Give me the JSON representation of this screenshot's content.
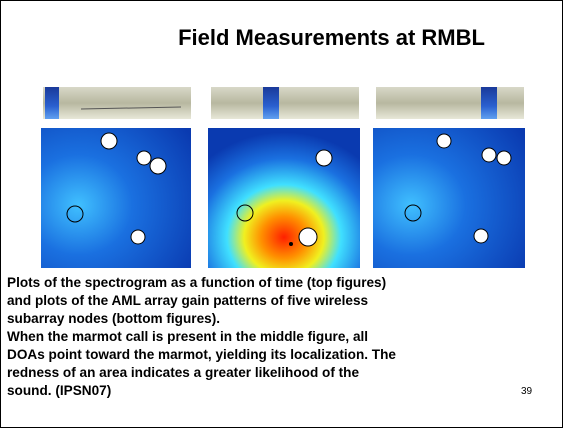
{
  "title": "Field Measurements at RMBL",
  "caption_lines": [
    "Plots of the spectrogram as a function of time (top figures)",
    "and plots of the AML array gain patterns of five wireless",
    "subarray nodes (bottom figures).",
    "When the marmot call is present in the middle figure, all",
    "DOAs point toward the marmot, yielding its localization.  The",
    "redness of an area indicates a greater likelihood of the",
    "sound. (IPSN07)"
  ],
  "page_number": "39"
}
